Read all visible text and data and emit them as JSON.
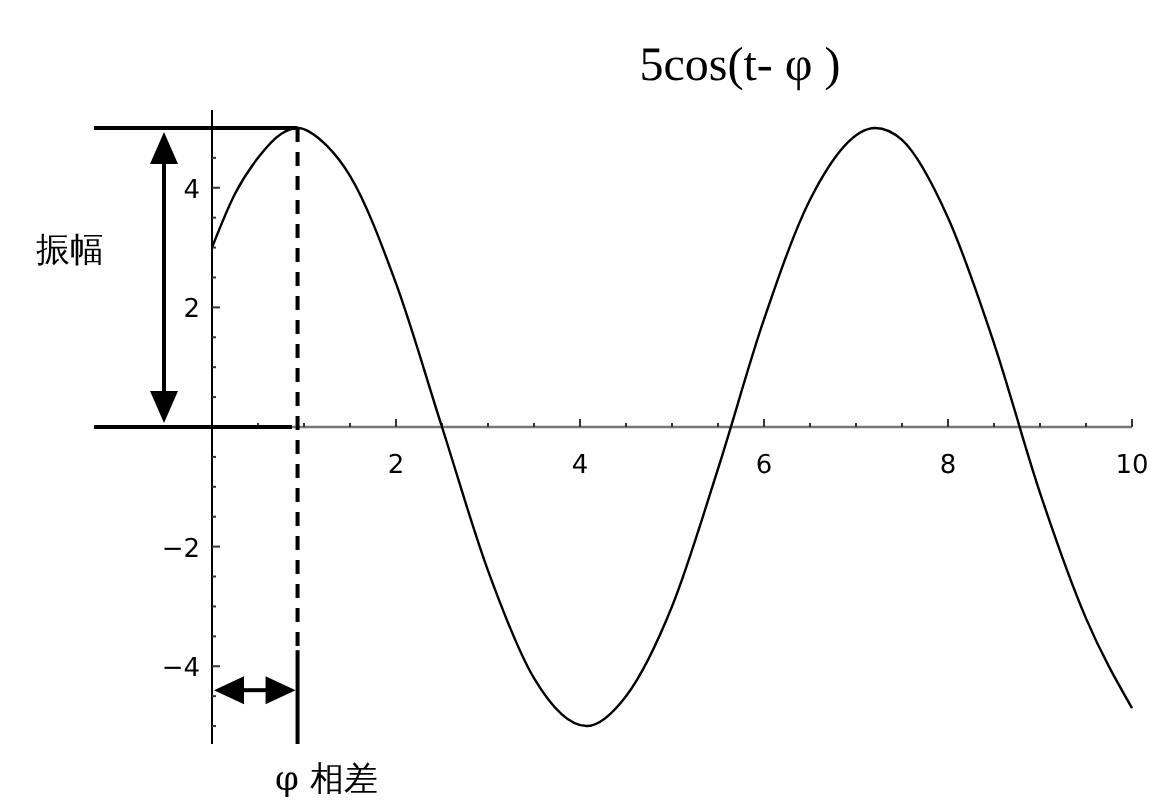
{
  "chart_data": {
    "type": "line",
    "title": "5cos(t- φ )",
    "x": [
      0,
      0.25,
      0.5,
      0.75,
      0.93,
      1.25,
      1.5,
      2,
      2.5,
      3,
      3.5,
      4.07,
      4.5,
      5,
      5.5,
      6,
      6.5,
      7.21,
      7.5,
      8,
      8.5,
      9,
      9.5,
      10
    ],
    "series": [
      {
        "color": "#000000",
        "values": [
          3.0,
          3.9,
          4.5,
          4.9,
          5,
          4.7,
          4.2,
          2.4,
          0,
          -2.4,
          -4.2,
          -5,
          -4.5,
          -3.0,
          -0.7,
          1.8,
          3.8,
          5,
          4.8,
          3.5,
          1.4,
          -1.1,
          -3.2,
          -4.7
        ]
      }
    ],
    "xlim": [
      0,
      10
    ],
    "ylim": [
      -5.3,
      5.3
    ],
    "xticks": [
      {
        "value": 0.5,
        "label": null
      },
      {
        "value": 1,
        "label": null
      },
      {
        "value": 1.5,
        "label": null
      },
      2,
      {
        "value": 2.5,
        "label": null
      },
      {
        "value": 3,
        "label": null
      },
      {
        "value": 3.5,
        "label": null
      },
      4,
      {
        "value": 4.5,
        "label": null
      },
      {
        "value": 5,
        "label": null
      },
      {
        "value": 5.5,
        "label": null
      },
      6,
      {
        "value": 6.5,
        "label": null
      },
      {
        "value": 7,
        "label": null
      },
      {
        "value": 7.5,
        "label": null
      },
      8,
      {
        "value": 8.5,
        "label": null
      },
      {
        "value": 9,
        "label": null
      },
      {
        "value": 9.5,
        "label": null
      },
      10
    ],
    "yticks": [
      {
        "value": -5,
        "label": null
      },
      {
        "value": -4.5,
        "label": null
      },
      -4,
      {
        "value": -3.5,
        "label": null
      },
      {
        "value": -3,
        "label": null
      },
      {
        "value": -2.5,
        "label": null
      },
      -2,
      {
        "value": -1.5,
        "label": null
      },
      {
        "value": -1,
        "label": null
      },
      {
        "value": -0.5,
        "label": null
      },
      {
        "value": 0.5,
        "label": null
      },
      {
        "value": 1,
        "label": null
      },
      {
        "value": 1.5,
        "label": null
      },
      2,
      {
        "value": 2.5,
        "label": null
      },
      {
        "value": 3,
        "label": null
      },
      {
        "value": 3.5,
        "label": null
      },
      4,
      {
        "value": 4.5,
        "label": null
      },
      {
        "value": 5,
        "label": null
      }
    ],
    "ref_lines": [
      {
        "axis": "x",
        "value": 0.93,
        "line_style": "dashed",
        "label": "φ 相差"
      }
    ],
    "annotations": [
      "振幅"
    ],
    "marker": "none",
    "line_style": "solid"
  }
}
